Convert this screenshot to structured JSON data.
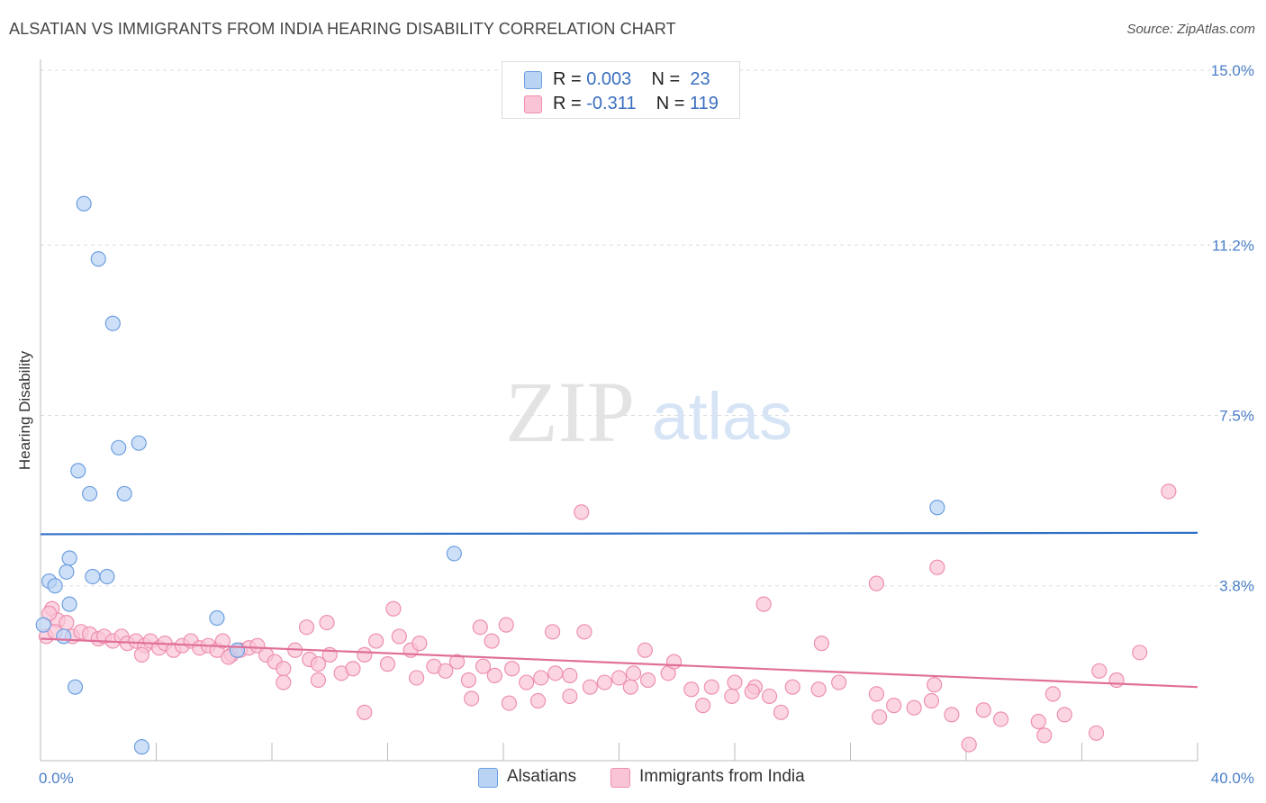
{
  "title": "ALSATIAN VS IMMIGRANTS FROM INDIA HEARING DISABILITY CORRELATION CHART",
  "source": "Source: ZipAtlas.com",
  "watermark": {
    "zip": "ZIP",
    "atlas": "atlas"
  },
  "legend": {
    "rows": [
      {
        "r_label": "R = ",
        "r_value": "0.003",
        "n_label": "N = ",
        "n_value": "23"
      },
      {
        "r_label": "R = ",
        "r_value": "-0.311",
        "n_label": "N = ",
        "n_value": "119"
      }
    ]
  },
  "bottom_legend": {
    "alsatians": "Alsatians",
    "india": "Immigrants from India"
  },
  "colors": {
    "alsatian_fill": "#b9d3f5",
    "alsatian_stroke": "#6d9fe0",
    "alsatian_line": "#2f6fc7",
    "india_fill": "#f9c4d6",
    "india_stroke": "#ee8fb0",
    "india_line": "#e0709a",
    "grid": "#dddddd",
    "tick_text": "#4a7fc8"
  },
  "chart_data": {
    "type": "scatter",
    "title": "ALSATIAN VS IMMIGRANTS FROM INDIA HEARING DISABILITY CORRELATION CHART",
    "xlabel": "",
    "ylabel": "Hearing Disability",
    "xlim": [
      0,
      40
    ],
    "ylim": [
      0,
      15
    ],
    "y_ticks": [
      {
        "value": 3.8,
        "label": "3.8%"
      },
      {
        "value": 7.5,
        "label": "7.5%"
      },
      {
        "value": 11.2,
        "label": "11.2%"
      },
      {
        "value": 15.0,
        "label": "15.0%"
      }
    ],
    "x_ticks": [
      {
        "value": 0,
        "label": "0.0%"
      },
      {
        "value": 40,
        "label": "40.0%"
      }
    ],
    "series": [
      {
        "name": "Alsatians",
        "R": 0.003,
        "N": 23,
        "trend": [
          [
            0,
            4.92
          ],
          [
            40,
            4.95
          ]
        ],
        "points": [
          [
            1.5,
            12.1
          ],
          [
            2.0,
            10.9
          ],
          [
            2.5,
            9.5
          ],
          [
            2.7,
            6.8
          ],
          [
            3.4,
            6.9
          ],
          [
            1.3,
            6.3
          ],
          [
            1.7,
            5.8
          ],
          [
            2.9,
            5.8
          ],
          [
            31,
            5.5
          ],
          [
            1.0,
            4.4
          ],
          [
            0.9,
            4.1
          ],
          [
            1.8,
            4.0
          ],
          [
            2.3,
            4.0
          ],
          [
            0.3,
            3.9
          ],
          [
            0.5,
            3.8
          ],
          [
            14.3,
            4.5
          ],
          [
            1.0,
            3.4
          ],
          [
            6.1,
            3.1
          ],
          [
            0.1,
            2.95
          ],
          [
            0.8,
            2.7
          ],
          [
            6.8,
            2.4
          ],
          [
            1.2,
            1.6
          ],
          [
            3.5,
            0.3
          ]
        ]
      },
      {
        "name": "Immigrants from India",
        "R": -0.311,
        "N": 119,
        "trend": [
          [
            0,
            2.65
          ],
          [
            40,
            1.6
          ]
        ],
        "points": [
          [
            39.0,
            5.85
          ],
          [
            18.7,
            5.4
          ],
          [
            31.0,
            4.2
          ],
          [
            28.9,
            3.85
          ],
          [
            25.0,
            3.4
          ],
          [
            0.4,
            3.3
          ],
          [
            0.6,
            3.05
          ],
          [
            0.3,
            3.2
          ],
          [
            0.9,
            3.0
          ],
          [
            12.2,
            3.3
          ],
          [
            9.9,
            3.0
          ],
          [
            9.2,
            2.9
          ],
          [
            15.2,
            2.9
          ],
          [
            16.1,
            2.95
          ],
          [
            17.7,
            2.8
          ],
          [
            18.8,
            2.8
          ],
          [
            1.1,
            2.7
          ],
          [
            1.4,
            2.8
          ],
          [
            1.7,
            2.75
          ],
          [
            2.0,
            2.65
          ],
          [
            2.2,
            2.7
          ],
          [
            2.5,
            2.6
          ],
          [
            2.8,
            2.7
          ],
          [
            3.0,
            2.55
          ],
          [
            3.3,
            2.6
          ],
          [
            3.6,
            2.5
          ],
          [
            3.8,
            2.6
          ],
          [
            4.1,
            2.45
          ],
          [
            4.3,
            2.55
          ],
          [
            4.6,
            2.4
          ],
          [
            4.9,
            2.5
          ],
          [
            5.2,
            2.6
          ],
          [
            5.5,
            2.45
          ],
          [
            5.8,
            2.5
          ],
          [
            6.1,
            2.4
          ],
          [
            6.3,
            2.6
          ],
          [
            6.6,
            2.3
          ],
          [
            6.9,
            2.4
          ],
          [
            7.2,
            2.45
          ],
          [
            7.5,
            2.5
          ],
          [
            7.8,
            2.3
          ],
          [
            8.1,
            2.15
          ],
          [
            8.4,
            2.0
          ],
          [
            8.8,
            2.4
          ],
          [
            9.3,
            2.2
          ],
          [
            9.6,
            2.1
          ],
          [
            10.0,
            2.3
          ],
          [
            10.4,
            1.9
          ],
          [
            10.8,
            2.0
          ],
          [
            11.2,
            2.3
          ],
          [
            11.6,
            2.6
          ],
          [
            12.0,
            2.1
          ],
          [
            12.4,
            2.7
          ],
          [
            12.8,
            2.4
          ],
          [
            13.1,
            2.55
          ],
          [
            13.6,
            2.05
          ],
          [
            14.0,
            1.95
          ],
          [
            14.4,
            2.15
          ],
          [
            14.8,
            1.75
          ],
          [
            15.3,
            2.05
          ],
          [
            15.7,
            1.85
          ],
          [
            16.3,
            2.0
          ],
          [
            16.8,
            1.7
          ],
          [
            17.3,
            1.8
          ],
          [
            17.8,
            1.9
          ],
          [
            18.3,
            1.85
          ],
          [
            19.0,
            1.6
          ],
          [
            19.5,
            1.7
          ],
          [
            20.0,
            1.8
          ],
          [
            20.5,
            1.9
          ],
          [
            21.0,
            1.75
          ],
          [
            21.7,
            1.9
          ],
          [
            22.5,
            1.55
          ],
          [
            23.2,
            1.6
          ],
          [
            24.0,
            1.7
          ],
          [
            24.7,
            1.6
          ],
          [
            25.2,
            1.4
          ],
          [
            26.0,
            1.6
          ],
          [
            26.9,
            1.55
          ],
          [
            27.6,
            1.7
          ],
          [
            28.9,
            1.45
          ],
          [
            29.5,
            1.2
          ],
          [
            30.2,
            1.15
          ],
          [
            30.8,
            1.3
          ],
          [
            31.5,
            1.0
          ],
          [
            32.6,
            1.1
          ],
          [
            33.2,
            0.9
          ],
          [
            34.5,
            0.85
          ],
          [
            35.4,
            1.0
          ],
          [
            36.5,
            0.6
          ],
          [
            37.2,
            1.75
          ],
          [
            38.0,
            2.35
          ],
          [
            16.2,
            1.25
          ],
          [
            18.3,
            1.4
          ],
          [
            22.9,
            1.2
          ],
          [
            25.6,
            1.05
          ],
          [
            29.0,
            0.95
          ],
          [
            32.1,
            0.35
          ],
          [
            34.7,
            0.55
          ],
          [
            11.2,
            1.05
          ],
          [
            23.9,
            1.4
          ],
          [
            36.6,
            1.95
          ],
          [
            8.4,
            1.7
          ],
          [
            14.9,
            1.35
          ],
          [
            20.4,
            1.6
          ],
          [
            27.0,
            2.55
          ],
          [
            0.2,
            2.7
          ],
          [
            0.5,
            2.8
          ],
          [
            3.5,
            2.3
          ],
          [
            6.5,
            2.25
          ],
          [
            21.9,
            2.15
          ],
          [
            9.6,
            1.75
          ],
          [
            13.0,
            1.8
          ],
          [
            17.2,
            1.3
          ],
          [
            24.6,
            1.5
          ],
          [
            30.9,
            1.65
          ],
          [
            35.0,
            1.45
          ],
          [
            20.9,
            2.4
          ],
          [
            15.6,
            2.6
          ]
        ]
      }
    ]
  }
}
